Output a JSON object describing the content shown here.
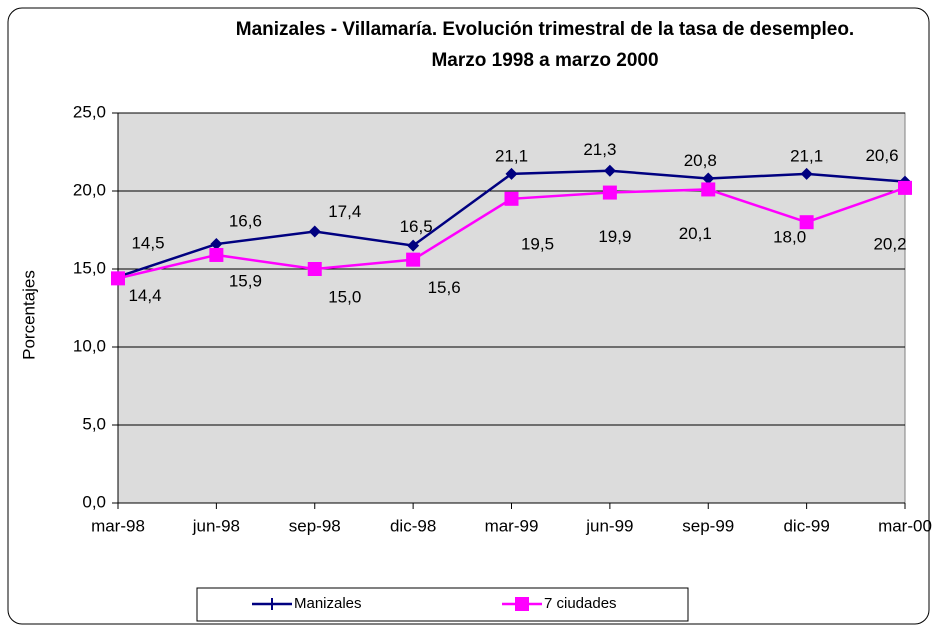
{
  "chart_data": {
    "type": "line",
    "title": "Manizales - Villamaría. Evolución trimestral de la tasa de desempleo.",
    "subtitle": "Marzo 1998 a marzo 2000",
    "y_label": "Porcentajes",
    "categories": [
      "mar-98",
      "jun-98",
      "sep-98",
      "dic-98",
      "mar-99",
      "jun-99",
      "sep-99",
      "dic-99",
      "mar-00"
    ],
    "series": [
      {
        "name": "Manizales",
        "color": "#000080",
        "marker": "diamond",
        "values": [
          14.5,
          16.6,
          17.4,
          16.5,
          21.1,
          21.3,
          20.8,
          21.1,
          20.6
        ],
        "value_labels": [
          "14,5",
          "16,6",
          "17,4",
          "16,5",
          "21,1",
          "21,3",
          "20,8",
          "21,1",
          "20,6"
        ]
      },
      {
        "name": "7 ciudades",
        "color": "#ff00ff",
        "marker": "square",
        "values": [
          14.4,
          15.9,
          15.0,
          15.6,
          19.5,
          19.9,
          20.1,
          18.0,
          20.2
        ],
        "value_labels": [
          "14,4",
          "15,9",
          "15,0",
          "15,6",
          "19,5",
          "19,9",
          "20,1",
          "18,0",
          "20,2"
        ]
      }
    ],
    "ylim": [
      0,
      25
    ],
    "yticks": [
      {
        "value": 0,
        "label": "0,0"
      },
      {
        "value": 5,
        "label": "5,0"
      },
      {
        "value": 10,
        "label": "10,0"
      },
      {
        "value": 15,
        "label": "15,0"
      },
      {
        "value": 20,
        "label": "20,0"
      },
      {
        "value": 25,
        "label": "25,0"
      }
    ],
    "grid": true,
    "legend": "bottom"
  }
}
